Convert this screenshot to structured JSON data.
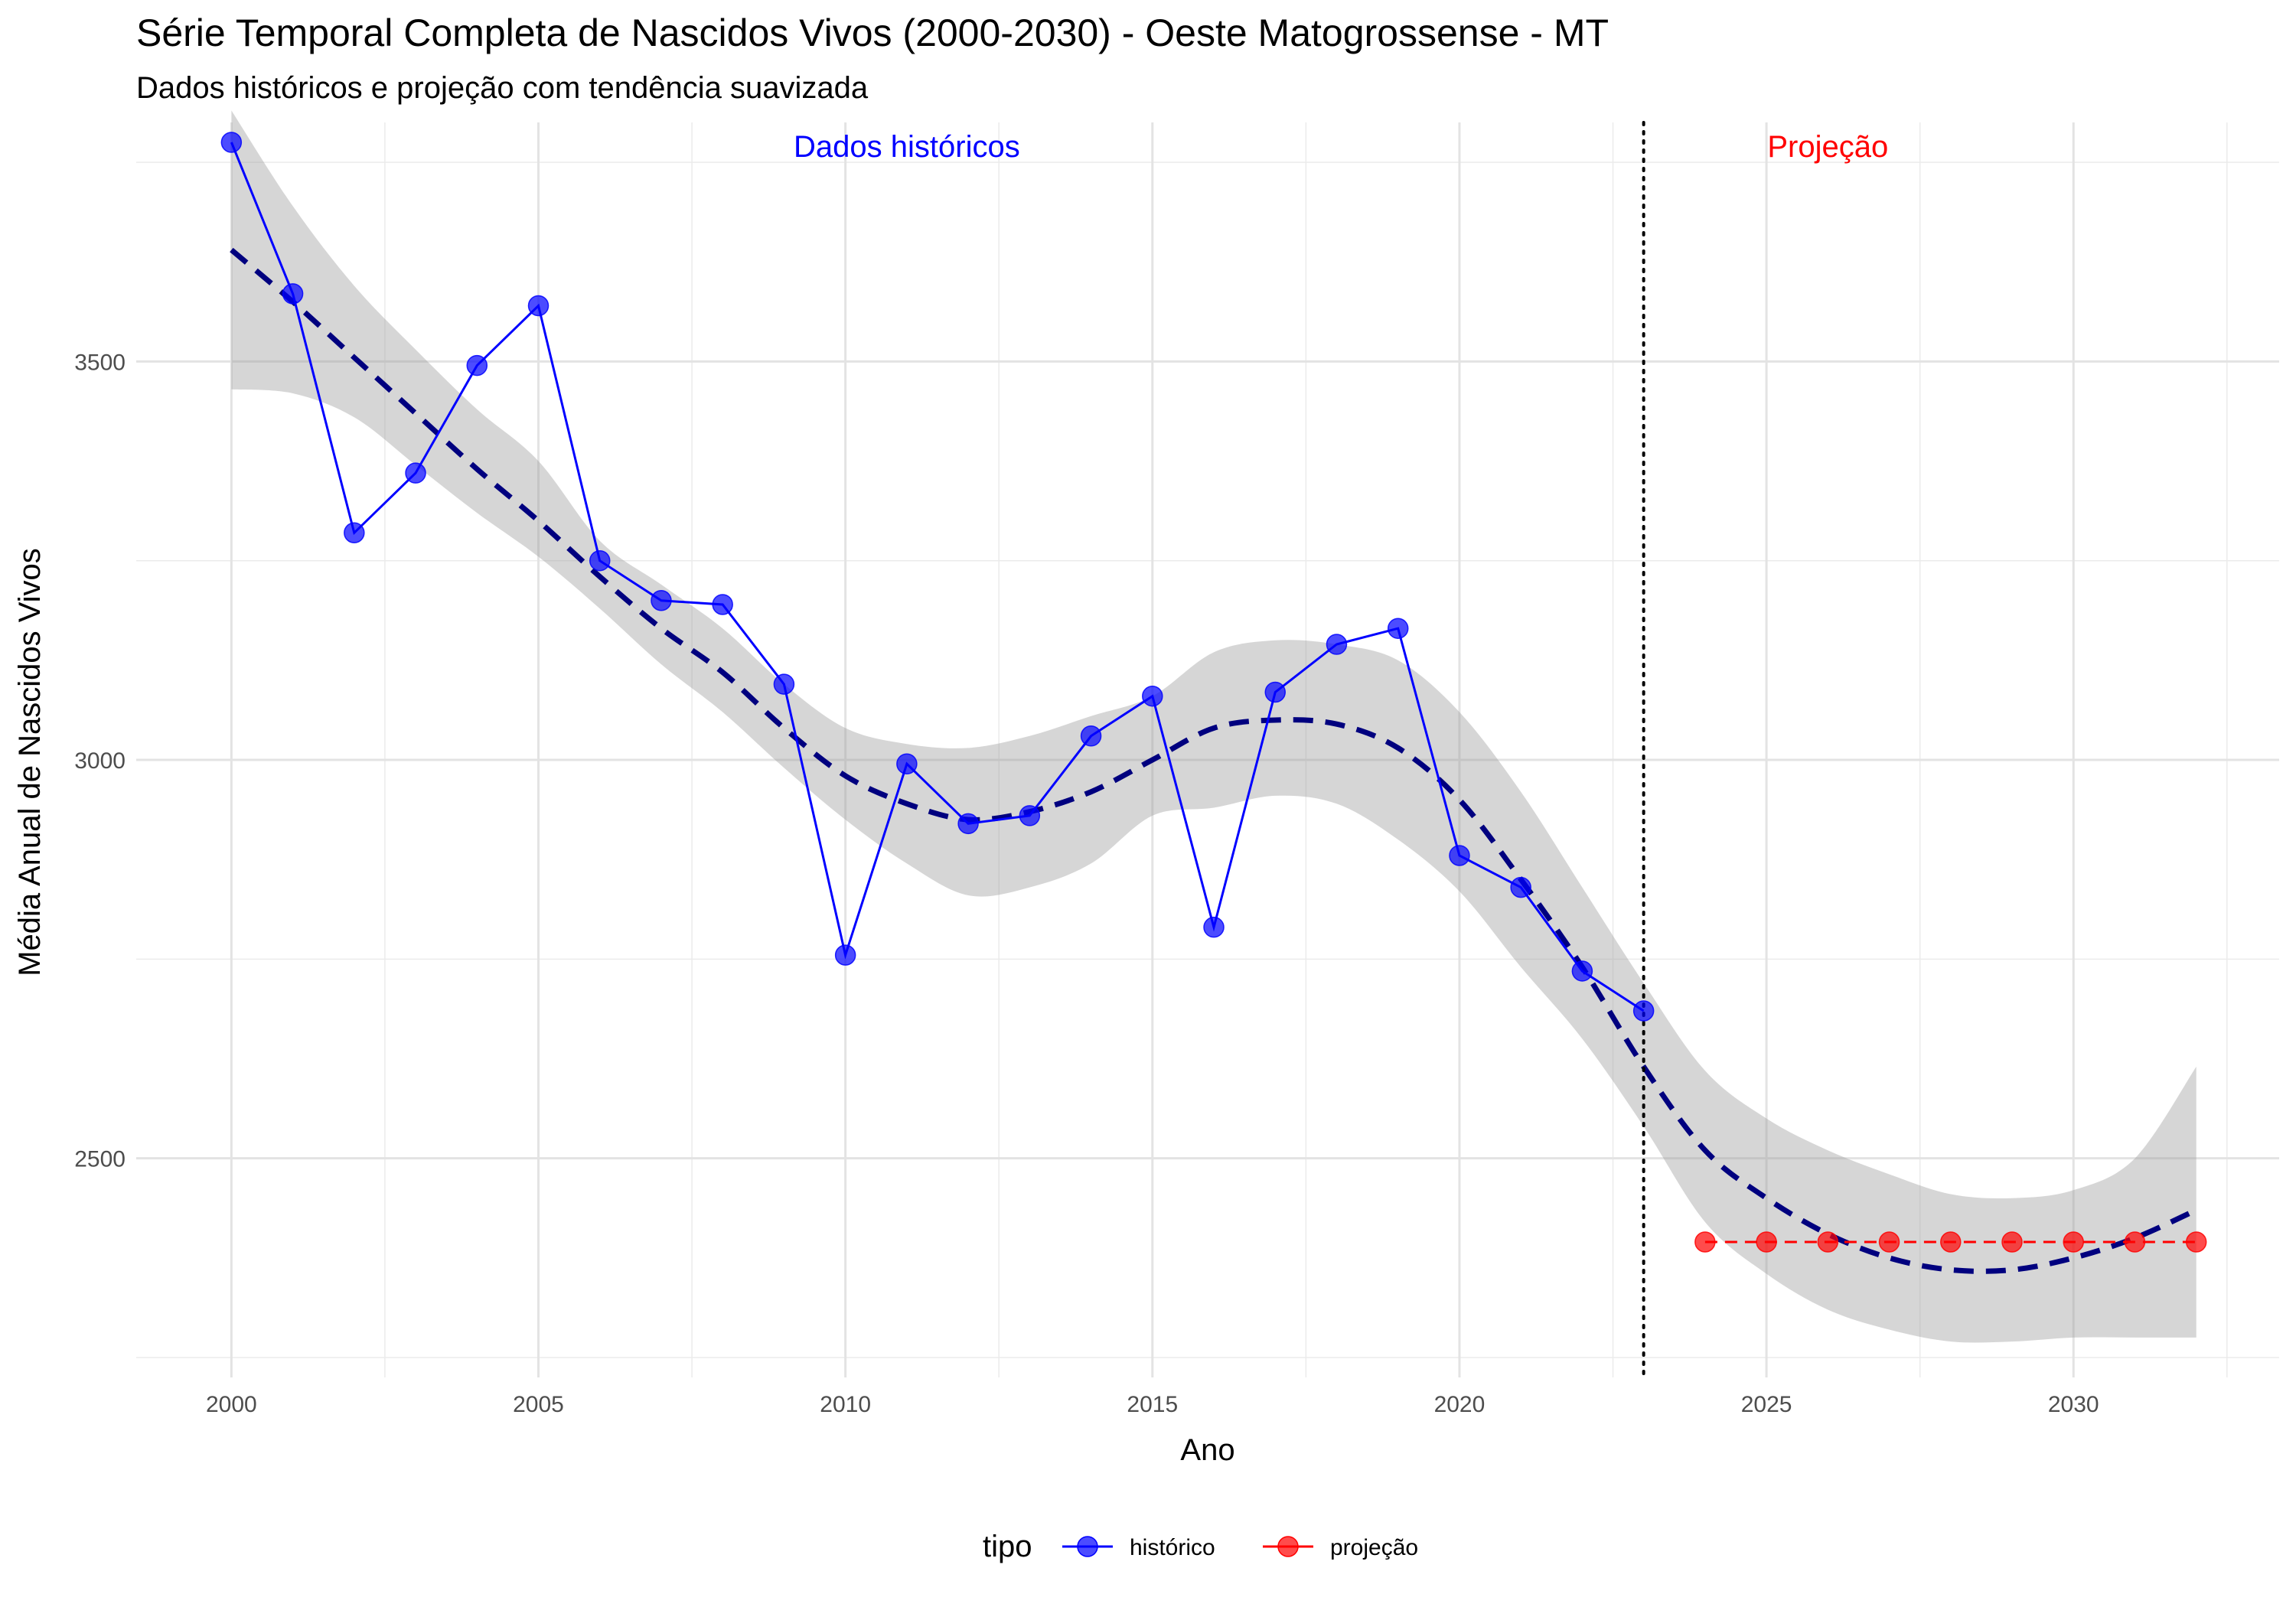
{
  "title": "Série Temporal Completa de Nascidos Vivos (2000-2030) -  Oeste Matogrossense - MT",
  "subtitle": "Dados históricos e projeção com tendência suavizada",
  "chart_data": {
    "type": "line",
    "xlabel": "Ano",
    "ylabel": "Média Anual de Nascidos Vivos",
    "xlim": [
      1998.45,
      2033.35
    ],
    "ylim": [
      2225,
      3800
    ],
    "x_ticks": [
      2000,
      2005,
      2010,
      2015,
      2020,
      2025,
      2030
    ],
    "y_ticks": [
      2500,
      3000,
      3500
    ],
    "grid": true,
    "series": [
      {
        "name": "histórico",
        "color": "#0000FF",
        "line_style": "solid",
        "points": [
          [
            2000,
            3775
          ],
          [
            2001,
            3585
          ],
          [
            2002,
            3285
          ],
          [
            2003,
            3360
          ],
          [
            2004,
            3495
          ],
          [
            2005,
            3570
          ],
          [
            2006,
            3250
          ],
          [
            2007,
            3200
          ],
          [
            2008,
            3195
          ],
          [
            2009,
            3095
          ],
          [
            2010,
            2755
          ],
          [
            2011,
            2995
          ],
          [
            2012,
            2920
          ],
          [
            2013,
            2930
          ],
          [
            2014,
            3030
          ],
          [
            2015,
            3080
          ],
          [
            2016,
            2790
          ],
          [
            2017,
            3085
          ],
          [
            2018,
            3145
          ],
          [
            2019,
            3165
          ],
          [
            2020,
            2880
          ],
          [
            2021,
            2840
          ],
          [
            2022,
            2735
          ],
          [
            2023,
            2685
          ]
        ]
      },
      {
        "name": "projeção",
        "color": "#FF0000",
        "line_style": "dashed",
        "points": [
          [
            2024,
            2395
          ],
          [
            2025,
            2395
          ],
          [
            2026,
            2395
          ],
          [
            2027,
            2395
          ],
          [
            2028,
            2395
          ],
          [
            2029,
            2395
          ],
          [
            2030,
            2395
          ],
          [
            2031,
            2395
          ],
          [
            2032,
            2395
          ]
        ]
      }
    ],
    "smooth_trend": {
      "color": "#00007F",
      "line_style": "dashed",
      "band_color": "#999999",
      "x": [
        2000,
        2001,
        2002,
        2003,
        2004,
        2005,
        2006,
        2007,
        2008,
        2009,
        2010,
        2011,
        2012,
        2013,
        2014,
        2015,
        2016,
        2017,
        2018,
        2019,
        2020,
        2021,
        2022,
        2023,
        2024,
        2025,
        2026,
        2027,
        2028,
        2029,
        2030,
        2031,
        2032
      ],
      "fit": [
        3640,
        3575,
        3505,
        3435,
        3365,
        3300,
        3230,
        3165,
        3110,
        3040,
        2980,
        2945,
        2925,
        2935,
        2960,
        3000,
        3040,
        3050,
        3045,
        3015,
        2950,
        2850,
        2740,
        2615,
        2510,
        2450,
        2405,
        2375,
        2360,
        2360,
        2375,
        2400,
        2435
      ],
      "lower": [
        3465,
        3460,
        3430,
        3370,
        3310,
        3255,
        3190,
        3120,
        3060,
        2990,
        2925,
        2870,
        2830,
        2840,
        2870,
        2930,
        2940,
        2955,
        2945,
        2900,
        2835,
        2740,
        2650,
        2540,
        2420,
        2355,
        2310,
        2285,
        2270,
        2270,
        2275,
        2275,
        2275
      ],
      "upper": [
        3815,
        3695,
        3595,
        3515,
        3440,
        3375,
        3275,
        3220,
        3165,
        3095,
        3040,
        3020,
        3015,
        3030,
        3055,
        3080,
        3135,
        3150,
        3145,
        3125,
        3060,
        2960,
        2840,
        2720,
        2610,
        2550,
        2510,
        2480,
        2455,
        2450,
        2460,
        2500,
        2615
      ]
    },
    "vline": {
      "x": 2023,
      "style": "dotted",
      "color": "#000000"
    },
    "annotations": [
      {
        "text": "Dados históricos",
        "x": 2011,
        "y": 3770,
        "color": "#0000FF"
      },
      {
        "text": "Projeção",
        "x": 2026,
        "y": 3770,
        "color": "#FF0000"
      }
    ],
    "legend": {
      "title": "tipo",
      "position": "bottom",
      "items": [
        {
          "label": "histórico",
          "color": "#0000FF"
        },
        {
          "label": "projeção",
          "color": "#FF0000"
        }
      ]
    }
  }
}
